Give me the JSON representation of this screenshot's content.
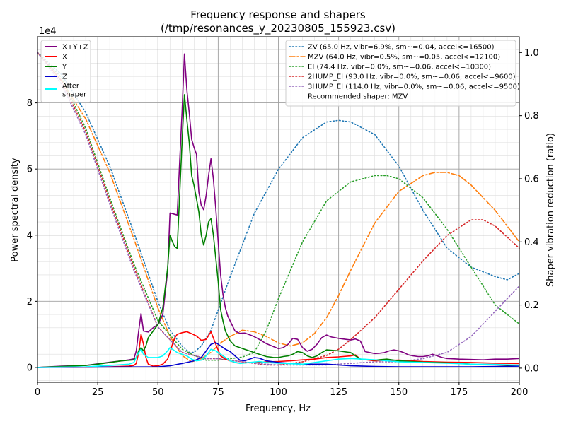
{
  "chart_data": {
    "type": "line",
    "title": "Frequency response and shapers",
    "subtitle": "(/tmp/resonances_y_20230805_155923.csv)",
    "xlabel": "Frequency, Hz",
    "ylabel": "Power spectral density",
    "y2label": "Shaper vibration reduction (ratio)",
    "y_scale_label": "1e4",
    "xlim": [
      0,
      200
    ],
    "ylim": [
      -4.5,
      100
    ],
    "y2lim": [
      -0.045,
      1.05
    ],
    "grid": true,
    "x_ticks": [
      0,
      25,
      50,
      75,
      100,
      125,
      150,
      175,
      200
    ],
    "y_ticks": [
      0,
      2,
      4,
      6,
      8
    ],
    "y2_ticks": [
      0.0,
      0.2,
      0.4,
      0.6,
      0.8,
      1.0
    ],
    "legend_left_placement": "top-left",
    "legend_right_placement": "top-right",
    "recommended_text": "Recommended shaper: MZV",
    "psd_series": [
      {
        "name": "X+Y+Z",
        "color": "#800080",
        "x": [
          0,
          10,
          20,
          25,
          30,
          35,
          38,
          40,
          41,
          42,
          43,
          44,
          46,
          48,
          50,
          52,
          54,
          55,
          56,
          57,
          58,
          59,
          60,
          61,
          62,
          63,
          64,
          65,
          66,
          67,
          68,
          69,
          70,
          71,
          72,
          73,
          74,
          75,
          76,
          77,
          78,
          79,
          80,
          82,
          84,
          86,
          88,
          90,
          92,
          95,
          98,
          100,
          102,
          104,
          106,
          108,
          110,
          112,
          114,
          116,
          118,
          120,
          122,
          125,
          128,
          130,
          132,
          134,
          136,
          140,
          142,
          144,
          146,
          148,
          150,
          152,
          154,
          156,
          158,
          160,
          162,
          164,
          166,
          168,
          170,
          175,
          180,
          185,
          190,
          195,
          200
        ],
        "y": [
          0,
          0.4,
          0.6,
          1.1,
          1.6,
          2.0,
          2.3,
          2.6,
          5.0,
          11.0,
          16.3,
          11.0,
          10.7,
          12.0,
          13.0,
          16.0,
          29.0,
          46.7,
          46.5,
          46.3,
          46.1,
          62.0,
          77.0,
          94.8,
          84.0,
          77.0,
          69.0,
          66.5,
          64.5,
          53.0,
          49.0,
          47.7,
          52.0,
          58.0,
          63.1,
          57.0,
          48.0,
          38.0,
          28.0,
          22.0,
          18.0,
          15.5,
          14.0,
          11.0,
          10.3,
          10.4,
          9.9,
          9.3,
          8.5,
          7.2,
          6.3,
          5.7,
          6.0,
          7.0,
          8.8,
          8.5,
          6.0,
          4.9,
          5.5,
          7.0,
          9.0,
          9.8,
          9.2,
          8.8,
          8.5,
          8.3,
          8.6,
          8.0,
          4.8,
          4.2,
          4.3,
          4.5,
          5.0,
          5.3,
          5.0,
          4.5,
          3.8,
          3.5,
          3.3,
          3.3,
          3.5,
          4.0,
          3.5,
          3.0,
          2.7,
          2.5,
          2.4,
          2.3,
          2.5,
          2.5,
          2.7
        ]
      },
      {
        "name": "X",
        "color": "#ff0000",
        "x": [
          0,
          10,
          20,
          30,
          38,
          40,
          41,
          42,
          43,
          44,
          45,
          46,
          48,
          50,
          52,
          54,
          55,
          56,
          57,
          58,
          60,
          62,
          64,
          66,
          68,
          70,
          72,
          74,
          76,
          78,
          80,
          82,
          84,
          86,
          88,
          90,
          95,
          100,
          105,
          110,
          115,
          120,
          125,
          130,
          132,
          134,
          140,
          150,
          160,
          170,
          180,
          190,
          200
        ],
        "y": [
          0,
          0.1,
          0.1,
          0.2,
          0.4,
          0.6,
          1.2,
          4.5,
          10.0,
          7.0,
          3.0,
          1.0,
          0.4,
          0.5,
          1.0,
          2.5,
          4.5,
          7.0,
          9.0,
          10.0,
          10.5,
          10.8,
          10.2,
          9.5,
          8.2,
          8.5,
          10.8,
          7.0,
          3.5,
          2.5,
          2.0,
          1.5,
          1.3,
          1.4,
          1.5,
          1.5,
          1.7,
          1.8,
          2.0,
          2.3,
          2.5,
          3.0,
          3.2,
          3.5,
          3.8,
          2.5,
          2.0,
          2.2,
          1.8,
          1.6,
          1.5,
          1.3,
          1.2
        ]
      },
      {
        "name": "Y",
        "color": "#008000",
        "x": [
          0,
          10,
          20,
          25,
          30,
          35,
          40,
          41,
          42,
          43,
          44,
          45,
          46,
          48,
          50,
          52,
          54,
          55,
          56,
          57,
          58,
          59,
          60,
          61,
          62,
          63,
          64,
          65,
          66,
          67,
          68,
          69,
          70,
          71,
          72,
          73,
          74,
          75,
          76,
          77,
          78,
          80,
          82,
          84,
          86,
          88,
          90,
          92,
          95,
          98,
          100,
          102,
          104,
          106,
          108,
          110,
          112,
          114,
          116,
          118,
          120,
          125,
          130,
          132,
          134,
          140,
          145,
          150,
          155,
          160,
          165,
          170,
          175,
          180,
          185,
          190,
          195,
          200
        ],
        "y": [
          0,
          0.3,
          0.6,
          1.0,
          1.5,
          2.0,
          2.3,
          3.0,
          5.0,
          6.0,
          5.0,
          6.5,
          9.0,
          11.0,
          13.0,
          18.0,
          30.0,
          40.0,
          38.0,
          36.5,
          36.0,
          52.0,
          68.0,
          82.5,
          75.0,
          68.0,
          58.0,
          55.0,
          51.0,
          47.0,
          40.0,
          37.0,
          40.0,
          44.0,
          45.0,
          40.0,
          33.0,
          26.0,
          17.5,
          14.0,
          11.0,
          8.0,
          6.5,
          6.0,
          5.5,
          5.0,
          4.5,
          4.0,
          3.3,
          3.0,
          3.0,
          3.3,
          3.5,
          4.0,
          4.8,
          4.5,
          3.5,
          3.0,
          3.5,
          4.5,
          5.3,
          5.0,
          4.5,
          3.5,
          2.5,
          2.2,
          2.5,
          2.0,
          1.8,
          1.6,
          1.5,
          1.4,
          1.2,
          1.0,
          0.8,
          0.8,
          0.7,
          0.7
        ]
      },
      {
        "name": "Z",
        "color": "#0000cd",
        "x": [
          0,
          20,
          40,
          50,
          55,
          60,
          62,
          65,
          68,
          70,
          72,
          74,
          76,
          78,
          80,
          82,
          84,
          86,
          88,
          90,
          92,
          95,
          100,
          110,
          120,
          130,
          140,
          150,
          160,
          170,
          180,
          190,
          200
        ],
        "y": [
          0,
          0.1,
          0.15,
          0.2,
          0.5,
          1.2,
          1.5,
          2.0,
          3.0,
          5.0,
          7.0,
          7.5,
          6.5,
          5.5,
          4.8,
          3.5,
          2.2,
          2.0,
          2.5,
          3.0,
          2.8,
          2.0,
          1.5,
          1.0,
          1.0,
          0.5,
          0.3,
          0.2,
          0.2,
          0.2,
          0.2,
          0.3,
          0.4
        ]
      },
      {
        "name": "After\nshaper",
        "color": "#00ffff",
        "x": [
          0,
          20,
          30,
          38,
          40,
          42,
          43,
          44,
          46,
          50,
          52,
          54,
          55,
          56,
          57,
          58,
          60,
          62,
          64,
          66,
          68,
          70,
          72,
          74,
          76,
          78,
          80,
          84,
          88,
          92,
          95,
          100,
          110,
          120,
          125,
          130,
          140,
          150,
          160,
          170,
          180,
          190,
          200
        ],
        "y": [
          0,
          0.2,
          0.6,
          1.0,
          1.5,
          4.5,
          5.5,
          4.0,
          3.0,
          3.0,
          3.5,
          5.0,
          6.0,
          5.5,
          5.0,
          4.5,
          4.0,
          3.5,
          2.5,
          2.0,
          2.2,
          3.5,
          5.5,
          5.0,
          4.0,
          3.0,
          2.0,
          1.2,
          1.5,
          1.8,
          1.5,
          1.3,
          1.0,
          2.0,
          2.5,
          2.7,
          2.3,
          1.7,
          1.5,
          1.3,
          1.0,
          0.9,
          0.7
        ]
      }
    ],
    "shaper_series": [
      {
        "name": "ZV (65.0 Hz, vibr=6.9%, sm~=0.04, accel<=16500)",
        "color": "#1f77b4",
        "dash": "dotted",
        "x": [
          0,
          10,
          20,
          30,
          40,
          50,
          55,
          60,
          63,
          65,
          68,
          72,
          80,
          90,
          100,
          110,
          120,
          125,
          130,
          140,
          150,
          160,
          170,
          180,
          190,
          195,
          200
        ],
        "y": [
          1.0,
          0.93,
          0.81,
          0.64,
          0.43,
          0.21,
          0.12,
          0.07,
          0.05,
          0.05,
          0.07,
          0.12,
          0.29,
          0.49,
          0.63,
          0.73,
          0.78,
          0.785,
          0.78,
          0.74,
          0.64,
          0.5,
          0.38,
          0.32,
          0.29,
          0.28,
          0.3
        ]
      },
      {
        "name": "MZV (64.0 Hz, vibr=0.5%, sm~=0.05, accel<=12100)",
        "color": "#ff7f0e",
        "dash": "dashdot",
        "x": [
          0,
          10,
          20,
          30,
          40,
          50,
          55,
          60,
          64,
          68,
          72,
          76,
          80,
          85,
          90,
          95,
          100,
          105,
          110,
          115,
          120,
          125,
          130,
          140,
          150,
          160,
          165,
          170,
          175,
          180,
          190,
          200
        ],
        "y": [
          1.0,
          0.91,
          0.79,
          0.62,
          0.41,
          0.19,
          0.1,
          0.04,
          0.02,
          0.03,
          0.05,
          0.08,
          0.1,
          0.12,
          0.115,
          0.1,
          0.08,
          0.07,
          0.08,
          0.11,
          0.16,
          0.23,
          0.31,
          0.46,
          0.56,
          0.61,
          0.62,
          0.62,
          0.61,
          0.58,
          0.5,
          0.4
        ]
      },
      {
        "name": "EI (74.4 Hz, vibr=0.0%, sm~=0.06, accel<=10300)",
        "color": "#2ca02c",
        "dash": "dotted",
        "x": [
          0,
          10,
          20,
          30,
          40,
          50,
          60,
          65,
          70,
          75,
          80,
          85,
          90,
          95,
          100,
          110,
          120,
          130,
          140,
          145,
          150,
          160,
          170,
          180,
          190,
          200
        ],
        "y": [
          1.0,
          0.92,
          0.76,
          0.54,
          0.33,
          0.15,
          0.06,
          0.04,
          0.025,
          0.025,
          0.03,
          0.035,
          0.05,
          0.12,
          0.22,
          0.4,
          0.53,
          0.59,
          0.61,
          0.61,
          0.6,
          0.54,
          0.44,
          0.32,
          0.2,
          0.14
        ]
      },
      {
        "name": "2HUMP_EI (93.0 Hz, vibr=0.0%, sm~=0.06, accel<=9600)",
        "color": "#d62728",
        "dash": "dotted",
        "x": [
          0,
          10,
          20,
          30,
          40,
          50,
          60,
          65,
          70,
          75,
          80,
          85,
          90,
          95,
          100,
          110,
          120,
          125,
          130,
          140,
          150,
          160,
          170,
          180,
          185,
          190,
          200
        ],
        "y": [
          1.0,
          0.91,
          0.75,
          0.53,
          0.32,
          0.13,
          0.05,
          0.04,
          0.03,
          0.03,
          0.025,
          0.02,
          0.015,
          0.01,
          0.01,
          0.02,
          0.04,
          0.06,
          0.09,
          0.16,
          0.25,
          0.34,
          0.42,
          0.47,
          0.47,
          0.45,
          0.38
        ]
      },
      {
        "name": "3HUMP_EI (114.0 Hz, vibr=0.0%, sm~=0.06, accel<=9500)",
        "color": "#9467bd",
        "dash": "dotted",
        "x": [
          0,
          10,
          20,
          30,
          40,
          50,
          60,
          65,
          70,
          75,
          80,
          90,
          100,
          110,
          120,
          130,
          140,
          150,
          160,
          170,
          180,
          190,
          200
        ],
        "y": [
          1.0,
          0.9,
          0.74,
          0.52,
          0.31,
          0.13,
          0.05,
          0.04,
          0.03,
          0.03,
          0.025,
          0.015,
          0.01,
          0.01,
          0.01,
          0.015,
          0.02,
          0.02,
          0.03,
          0.05,
          0.1,
          0.18,
          0.26
        ]
      }
    ]
  }
}
